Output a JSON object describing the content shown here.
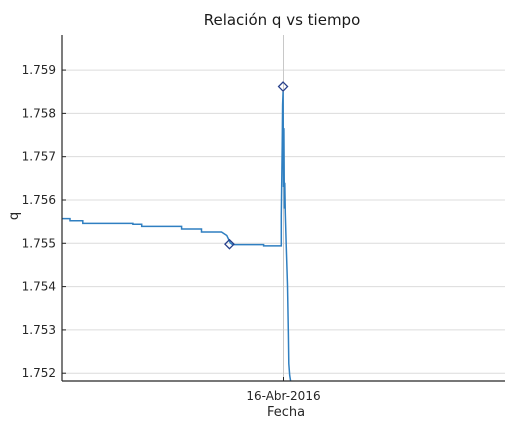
{
  "chart_data": {
    "type": "line",
    "title": "Relación q vs tiempo",
    "xlabel": "Fecha",
    "ylabel": "q",
    "x_tick_labels": [
      "16-Abr-2016"
    ],
    "y_ticks": [
      1.752,
      1.753,
      1.754,
      1.755,
      1.756,
      1.757,
      1.758,
      1.759
    ],
    "y_tick_labels": [
      "1.752",
      "1.753",
      "1.754",
      "1.755",
      "1.756",
      "1.757",
      "1.758",
      "1.759"
    ],
    "xlim": [
      0,
      100
    ],
    "ylim": [
      1.75182,
      1.75981
    ],
    "grid": true,
    "grid_axis": "y",
    "reference_line_x": 50,
    "series": [
      {
        "color": "#2f7fc1",
        "points": [
          [
            0,
            1.75557
          ],
          [
            1.8,
            1.75557
          ],
          [
            1.8,
            1.75552
          ],
          [
            4.7,
            1.75552
          ],
          [
            4.7,
            1.75546
          ],
          [
            16,
            1.75546
          ],
          [
            16,
            1.75544
          ],
          [
            18,
            1.75544
          ],
          [
            18,
            1.75539
          ],
          [
            27,
            1.75539
          ],
          [
            27,
            1.75533
          ],
          [
            31.5,
            1.75533
          ],
          [
            31.5,
            1.75526
          ],
          [
            36,
            1.75526
          ],
          [
            37.2,
            1.75518
          ],
          [
            38,
            1.75501
          ],
          [
            38.5,
            1.75497
          ],
          [
            45.5,
            1.75497
          ],
          [
            45.5,
            1.75494
          ],
          [
            49.5,
            1.75494
          ],
          [
            49.5,
            1.75563
          ],
          [
            49.7,
            1.75725
          ],
          [
            49.8,
            1.7582
          ],
          [
            49.9,
            1.7585
          ],
          [
            50.0,
            1.7563
          ],
          [
            50.1,
            1.75766
          ],
          [
            50.2,
            1.7558
          ],
          [
            50.3,
            1.7564
          ],
          [
            50.4,
            1.7557
          ],
          [
            50.6,
            1.75497
          ],
          [
            50.9,
            1.75404
          ],
          [
            51.1,
            1.75288
          ],
          [
            51.2,
            1.75222
          ],
          [
            51.4,
            1.75195
          ],
          [
            51.6,
            1.75182
          ]
        ]
      }
    ],
    "markers": [
      {
        "x": 37.8,
        "y": 1.75498,
        "shape": "diamond",
        "color": "#27408b"
      },
      {
        "x": 49.9,
        "y": 1.75862,
        "shape": "diamond",
        "color": "#27408b"
      }
    ]
  }
}
